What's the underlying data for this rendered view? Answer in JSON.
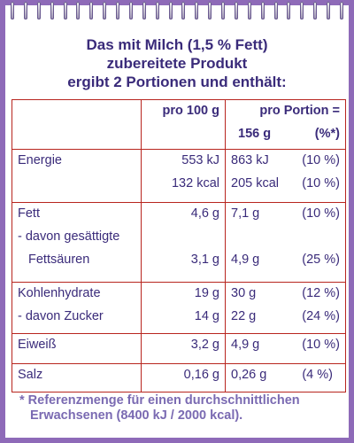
{
  "title": {
    "line1": "Das mit Milch (1,5 % Fett)",
    "line2": "zubereitete Produkt",
    "line3": "ergibt 2 Portionen und enthält:"
  },
  "table": {
    "header": {
      "per100": "pro 100 g",
      "perPortion1": "pro Portion =",
      "perPortion2": "156 g",
      "pct": "(%*)"
    },
    "rows": {
      "energie": {
        "label": "Energie",
        "v100": [
          "553 kJ",
          "132 kcal"
        ],
        "vPor": [
          "863 kJ",
          "205 kcal"
        ],
        "pct": [
          "(10 %)",
          "(10 %)"
        ]
      },
      "fett": {
        "label": "Fett",
        "sub1": "- davon gesättigte",
        "sub2": "Fettsäuren",
        "v100": [
          "4,6 g",
          "3,1 g"
        ],
        "vPor": [
          "7,1 g",
          "4,9 g"
        ],
        "pct": [
          "(10 %)",
          "(25 %)"
        ]
      },
      "kohlenhydrate": {
        "label": "Kohlenhydrate",
        "sub": "- davon Zucker",
        "v100": [
          "19 g",
          "14 g"
        ],
        "vPor": [
          "30 g",
          "22 g"
        ],
        "pct": [
          "(12 %)",
          "(24 %)"
        ]
      },
      "eiweiss": {
        "label": "Eiweiß",
        "v100": "3,2 g",
        "vPor": "4,9 g",
        "pct": "(10 %)"
      },
      "salz": {
        "label": "Salz",
        "v100": "0,16 g",
        "vPor": "0,26 g",
        "pct": "(4 %)"
      }
    }
  },
  "footnote": {
    "line1": "* Referenzmenge für einen durchschnittlichen",
    "line2": "Erwachsenen (8400 kJ / 2000 kcal)."
  },
  "colors": {
    "background": "#8e6ab8",
    "text": "#3a2b7a",
    "grid": "#b8251e",
    "footnote": "#7a6ab2"
  }
}
